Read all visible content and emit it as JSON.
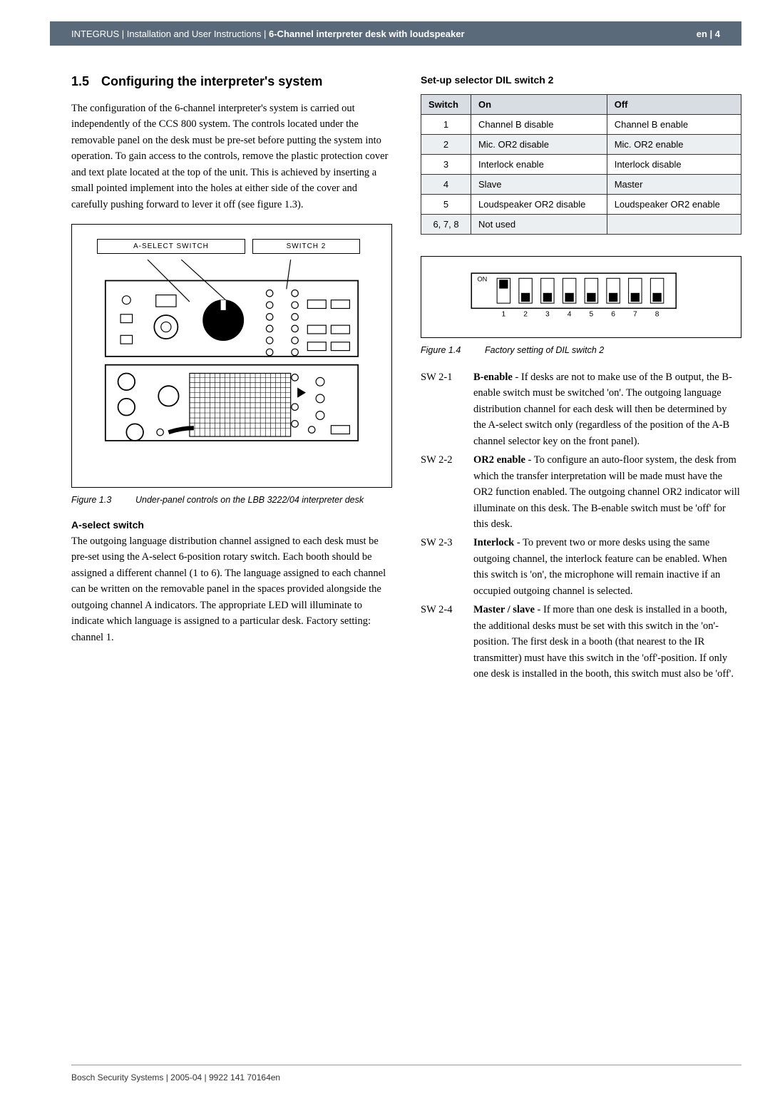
{
  "header": {
    "brand": "INTEGRUS",
    "sep1": " | ",
    "mid": "Installation and User Instructions",
    "sep2": " | ",
    "section": "6-Channel interpreter desk with loudspeaker",
    "lang": "en | ",
    "page": "4"
  },
  "heading": {
    "num": "1.5",
    "title": "Configuring the interpreter's system"
  },
  "intro": "The configuration of the 6-channel interpreter's system is carried out independently of the CCS 800 system. The controls located under the removable panel on the desk must be pre-set before putting the system into operation. To gain access to the controls, remove the plastic protection cover and text plate located at the top of the unit. This is achieved by inserting a small pointed implement into the holes at either side of the cover and carefully pushing forward to lever it off (see figure 1.3).",
  "fig13": {
    "label_a": "A-SELECT SWITCH",
    "label_b": "SWITCH 2",
    "caption_num": "Figure 1.3",
    "caption_text": "Under-panel controls on the LBB 3222/04 interpreter desk"
  },
  "aselect": {
    "heading": "A-select switch",
    "text": "The outgoing language distribution channel assigned to each desk must be pre-set using the A-select 6-position rotary switch. Each booth should be assigned a different channel (1 to 6). The language assigned to each channel can be written on the removable panel in the spaces provided alongside the outgoing channel A indicators. The appropriate LED will illuminate to indicate which language is assigned to a particular desk. Factory setting: channel 1."
  },
  "diltable": {
    "heading": "Set-up selector DIL switch 2",
    "headers": [
      "Switch",
      "On",
      "Off"
    ],
    "rows": [
      {
        "sw": "1",
        "on": "Channel B disable",
        "off": "Channel B enable",
        "alt": false
      },
      {
        "sw": "2",
        "on": "Mic. OR2 disable",
        "off": "Mic. OR2 enable",
        "alt": true
      },
      {
        "sw": "3",
        "on": "Interlock enable",
        "off": "Interlock disable",
        "alt": false
      },
      {
        "sw": "4",
        "on": "Slave",
        "off": "Master",
        "alt": true
      },
      {
        "sw": "5",
        "on": "Loudspeaker OR2 disable",
        "off": "Loudspeaker OR2 enable",
        "alt": false
      },
      {
        "sw": "6, 7, 8",
        "on": "Not used",
        "off": "",
        "alt": true
      }
    ]
  },
  "dip": {
    "positions": [
      "up",
      "down",
      "down",
      "down",
      "down",
      "down",
      "down",
      "down"
    ],
    "labels": [
      "1",
      "2",
      "3",
      "4",
      "5",
      "6",
      "7",
      "8"
    ],
    "on_label": "ON",
    "colors": {
      "border": "#000000",
      "slot": "#ffffff",
      "thumb": "#000000"
    }
  },
  "fig14": {
    "caption_num": "Figure 1.4",
    "caption_text": "Factory setting of DIL switch 2"
  },
  "switches": [
    {
      "id": "SW 2-1",
      "name": "B-enable",
      "text": " - If desks are not to make use of the B output, the B-enable switch must be switched 'on'. The outgoing language distribution channel for each desk will then be determined by the A-select switch only (regardless of the position of the A-B channel selector key on the front panel)."
    },
    {
      "id": "SW 2-2",
      "name": "OR2 enable",
      "text": " - To configure an auto-floor system, the desk from which the transfer interpretation will be made must have the OR2 function enabled. The outgoing channel OR2 indicator will illuminate on this desk. The B-enable switch must be 'off' for this desk."
    },
    {
      "id": "SW 2-3",
      "name": "Interlock",
      "text": " - To prevent two or more desks using the same outgoing channel, the interlock feature can be enabled. When this switch is 'on', the microphone will remain inactive if an occupied outgoing channel is selected."
    },
    {
      "id": "SW 2-4",
      "name": "Master / slave",
      "text": " - If more than one desk is installed in a booth, the additional desks must be set with this switch in the 'on'-position. The first desk in a booth (that nearest to the IR transmitter) must have this switch in the 'off'-position. If only one desk is installed in the booth, this switch must also be 'off'."
    }
  ],
  "footer": "Bosch Security Systems | 2005-04 | 9922 141 70164en"
}
